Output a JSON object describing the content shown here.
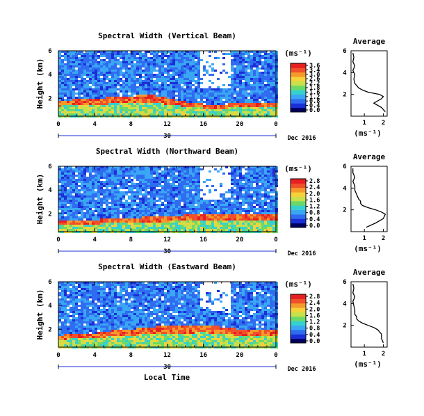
{
  "date_label": "Dec 2016",
  "xlabel": "Local Time",
  "colorbar": {
    "unit_label": "(ms⁻¹)",
    "ticks": [
      "3.6",
      "3.4",
      "3.0",
      "2.6",
      "2.2",
      "1.8",
      "1.6",
      "1.2",
      "0.8",
      "0.4",
      "0.0"
    ]
  },
  "colorbar_alt": {
    "ticks": [
      "2.8",
      "2.4",
      "2.0",
      "1.6",
      "1.2",
      "0.8",
      "0.4",
      "0.0"
    ]
  },
  "colors": {
    "missing": "#ffffff",
    "scale": [
      "#000060",
      "#1a2fd8",
      "#2f6cf0",
      "#3aa7f5",
      "#36d1cf",
      "#6ad96a",
      "#c8e04a",
      "#f5d23a",
      "#f59a2a",
      "#f0502a",
      "#e62020"
    ]
  },
  "chart_data": [
    {
      "type": "heatmap",
      "title": "Spectral Width (Vertical Beam)",
      "ylabel": "Height (km)",
      "x_ticks": [
        "0",
        "4",
        "8",
        "12",
        "16",
        "20",
        "0"
      ],
      "x_sub_label": "30",
      "xlim": [
        0,
        24
      ],
      "y_ticks": [
        "6",
        "4",
        "2"
      ],
      "ylim": [
        0.5,
        6
      ],
      "boundary_layer_top_km": [
        1.8,
        1.9,
        2.0,
        2.1,
        2.2,
        2.3,
        2.0,
        1.7,
        1.5,
        1.5,
        1.6,
        1.6,
        1.6
      ],
      "profile": {
        "title": "Average",
        "xlabel": "(ms⁻¹)",
        "x_ticks": [
          "1",
          "2"
        ],
        "xlim": [
          0.3,
          2.2
        ],
        "y_ticks": [
          "6",
          "4",
          "2"
        ],
        "ylim": [
          0,
          6
        ],
        "height_km": [
          0.4,
          0.8,
          1.2,
          1.6,
          1.8,
          2.0,
          2.2,
          2.4,
          2.6,
          2.8,
          3.0,
          3.4,
          3.8,
          4.2,
          4.6,
          5.0,
          5.4,
          5.8
        ],
        "width_ms": [
          2.1,
          1.9,
          1.5,
          1.9,
          2.0,
          1.8,
          1.2,
          0.9,
          0.7,
          0.6,
          0.5,
          0.45,
          0.5,
          0.4,
          0.5,
          0.4,
          0.45,
          0.4
        ]
      }
    },
    {
      "type": "heatmap",
      "title": "Spectral Width (Northward Beam)",
      "ylabel": "Height (km)",
      "x_ticks": [
        "0",
        "4",
        "8",
        "12",
        "16",
        "20",
        "0"
      ],
      "x_sub_label": "30",
      "xlim": [
        0,
        24
      ],
      "y_ticks": [
        "6",
        "4",
        "2"
      ],
      "ylim": [
        0.5,
        6
      ],
      "boundary_layer_top_km": [
        1.4,
        1.4,
        1.5,
        1.6,
        1.6,
        1.8,
        1.8,
        1.9,
        1.9,
        2.0,
        2.0,
        2.0,
        2.0
      ],
      "profile": {
        "title": "Average",
        "xlabel": "(ms⁻¹)",
        "x_ticks": [
          "1",
          "2"
        ],
        "xlim": [
          0.3,
          2.2
        ],
        "y_ticks": [
          "6",
          "4",
          "2"
        ],
        "ylim": [
          0,
          6
        ],
        "height_km": [
          0.4,
          0.8,
          1.2,
          1.6,
          1.8,
          2.0,
          2.2,
          2.4,
          2.6,
          2.8,
          3.0,
          3.4,
          3.8,
          4.2,
          4.6,
          5.0,
          5.4,
          5.8
        ],
        "width_ms": [
          1.1,
          1.6,
          2.0,
          2.1,
          1.9,
          1.6,
          1.2,
          0.9,
          0.8,
          0.8,
          0.7,
          0.6,
          0.5,
          0.5,
          0.4,
          0.5,
          0.4,
          0.4
        ]
      }
    },
    {
      "type": "heatmap",
      "title": "Spectral Width (Eastward Beam)",
      "ylabel": "Height (km)",
      "x_ticks": [
        "0",
        "4",
        "8",
        "12",
        "16",
        "20",
        "0"
      ],
      "x_sub_label": "30",
      "xlim": [
        0,
        24
      ],
      "y_ticks": [
        "6",
        "4",
        "2"
      ],
      "ylim": [
        0.5,
        6
      ],
      "boundary_layer_top_km": [
        1.5,
        1.6,
        1.7,
        1.9,
        2.0,
        2.2,
        2.3,
        2.3,
        2.4,
        2.2,
        2.0,
        2.0,
        2.0
      ],
      "profile": {
        "title": "Average",
        "xlabel": "(ms⁻¹)",
        "x_ticks": [
          "1",
          "2"
        ],
        "xlim": [
          0.3,
          2.2
        ],
        "y_ticks": [
          "6",
          "4",
          "2"
        ],
        "ylim": [
          0,
          6
        ],
        "height_km": [
          0.4,
          0.8,
          1.2,
          1.6,
          1.8,
          2.0,
          2.2,
          2.4,
          2.6,
          2.8,
          3.0,
          3.4,
          3.8,
          4.2,
          4.6,
          5.0,
          5.4,
          5.8
        ],
        "width_ms": [
          2.0,
          1.9,
          1.9,
          1.7,
          1.5,
          1.2,
          0.9,
          0.7,
          0.6,
          0.6,
          0.5,
          0.5,
          0.45,
          0.4,
          0.5,
          0.4,
          0.45,
          0.4
        ]
      }
    }
  ]
}
